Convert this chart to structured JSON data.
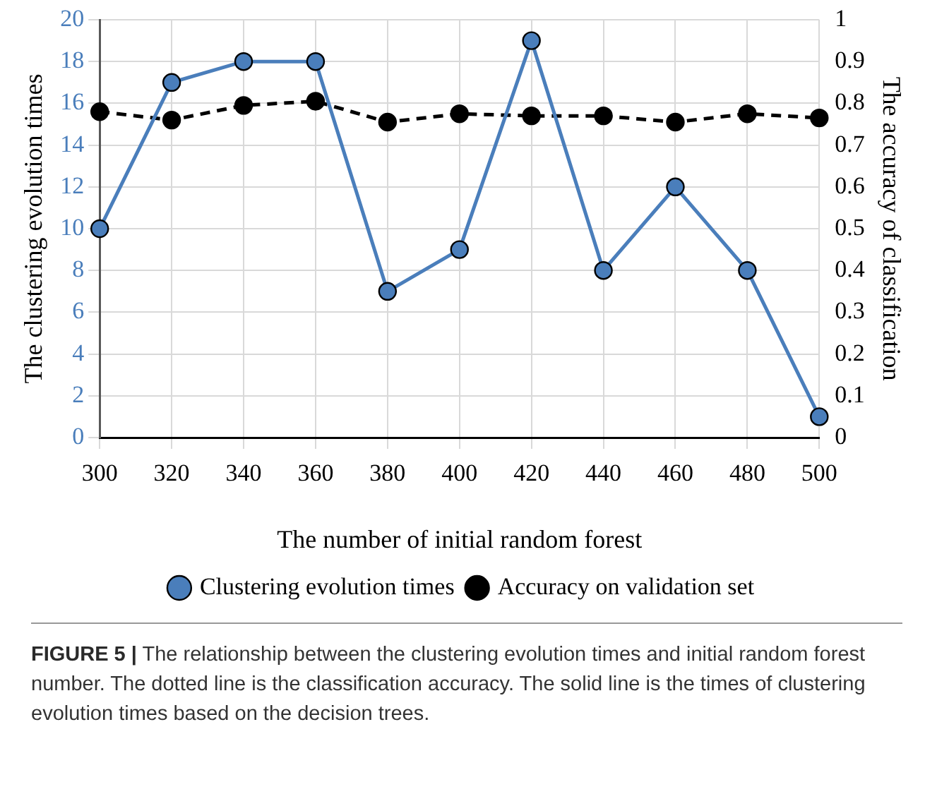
{
  "chart_data": {
    "type": "line",
    "categories": [
      "300",
      "320",
      "340",
      "360",
      "380",
      "400",
      "420",
      "440",
      "460",
      "480",
      "500"
    ],
    "xlabel": "The number of initial random forest",
    "ylabel": "The clustering evolution times",
    "y2label": "The accuracy of classification",
    "series": [
      {
        "name": "Clustering evolution times",
        "color": "#4a7ebb",
        "line_style": "solid",
        "values": [
          10,
          17,
          18,
          18,
          7,
          9,
          19,
          8,
          12,
          8,
          1
        ]
      },
      {
        "name": "Accuracy on validation set",
        "color": "#000000",
        "line_style": "dashed",
        "axis": "y2",
        "values": [
          0.78,
          0.76,
          0.795,
          0.805,
          0.755,
          0.775,
          0.77,
          0.77,
          0.755,
          0.775,
          0.765
        ]
      }
    ],
    "ylim": [
      0,
      20
    ],
    "yticks": [
      0,
      2,
      4,
      6,
      8,
      10,
      12,
      14,
      16,
      18,
      20
    ],
    "y2lim": [
      0,
      1
    ],
    "y2ticks": [
      0,
      0.1,
      0.2,
      0.3,
      0.4,
      0.5,
      0.6,
      0.7,
      0.8,
      0.9,
      1
    ],
    "grid": true,
    "legend": "bottom",
    "marker": "circle",
    "annotations": [
      "FIGURE 5 | The relationship between the clustering evolution times and initial random forest number. The dotted line is the classification accuracy. The solid line is the times of clustering evolution times based on the decision trees."
    ]
  }
}
